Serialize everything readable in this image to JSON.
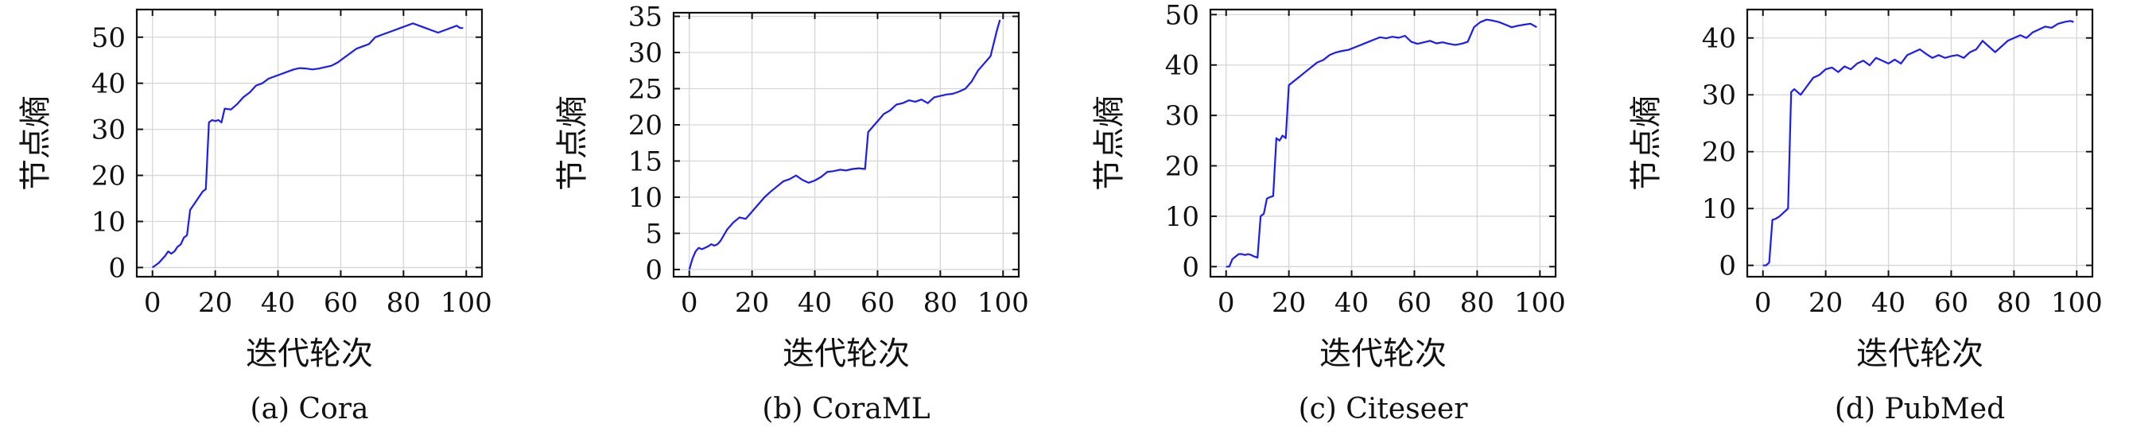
{
  "chart_data": [
    {
      "type": "line",
      "caption": "(a) Cora",
      "xlabel": "迭代轮次",
      "ylabel": "节点熵",
      "xlim": [
        -5,
        105
      ],
      "ylim": [
        -2,
        56
      ],
      "xticks": [
        0,
        20,
        40,
        60,
        80,
        100
      ],
      "yticks": [
        0,
        10,
        20,
        30,
        40,
        50
      ],
      "grid": true,
      "series": [
        {
          "color": "#1a1aff",
          "x": [
            0,
            2,
            4,
            5,
            6,
            7,
            8,
            9,
            10,
            11,
            12,
            13,
            14,
            15,
            16,
            17,
            18,
            19,
            20,
            21,
            22,
            23,
            25,
            27,
            29,
            31,
            33,
            35,
            37,
            39,
            41,
            43,
            45,
            47,
            49,
            51,
            53,
            55,
            57,
            59,
            61,
            63,
            65,
            67,
            69,
            71,
            73,
            75,
            77,
            79,
            81,
            83,
            85,
            87,
            89,
            91,
            93,
            95,
            97,
            98,
            99
          ],
          "y": [
            0,
            1,
            2.5,
            3.5,
            3,
            3.5,
            4.5,
            5,
            6.5,
            7,
            12.5,
            13.5,
            14.5,
            15.5,
            16.5,
            17,
            31.5,
            32,
            31.8,
            32,
            31.5,
            34.5,
            34.3,
            35.5,
            37,
            38,
            39.5,
            40,
            41,
            41.5,
            42,
            42.5,
            43,
            43.3,
            43.2,
            43,
            43.2,
            43.5,
            43.8,
            44.5,
            45.5,
            46.5,
            47.5,
            48,
            48.5,
            50,
            50.5,
            51,
            51.5,
            52,
            52.5,
            53,
            52.5,
            52,
            51.5,
            51,
            51.5,
            52,
            52.5,
            52,
            52
          ]
        }
      ]
    },
    {
      "type": "line",
      "caption": "(b) CoraML",
      "xlabel": "迭代轮次",
      "ylabel": "节点熵",
      "xlim": [
        -5,
        105
      ],
      "ylim": [
        -1,
        35.5
      ],
      "xticks": [
        0,
        20,
        40,
        60,
        80,
        100
      ],
      "yticks": [
        0,
        5,
        10,
        15,
        20,
        25,
        30,
        35
      ],
      "grid": true,
      "series": [
        {
          "color": "#1a1aff",
          "x": [
            0,
            1,
            2,
            3,
            4,
            5,
            6,
            7,
            8,
            9,
            10,
            12,
            14,
            16,
            18,
            20,
            22,
            24,
            26,
            28,
            30,
            32,
            34,
            36,
            38,
            40,
            42,
            44,
            46,
            48,
            50,
            52,
            54,
            56,
            57,
            58,
            60,
            62,
            64,
            66,
            68,
            70,
            72,
            74,
            76,
            78,
            80,
            82,
            84,
            86,
            88,
            90,
            92,
            94,
            96,
            98,
            99
          ],
          "y": [
            0,
            1.5,
            2.5,
            3,
            2.8,
            3,
            3.2,
            3.5,
            3.3,
            3.5,
            4,
            5.5,
            6.5,
            7.2,
            7,
            8,
            9,
            10,
            10.8,
            11.5,
            12.2,
            12.5,
            13,
            12.4,
            12,
            12.3,
            12.8,
            13.5,
            13.6,
            13.8,
            13.7,
            13.9,
            14,
            13.9,
            19,
            19.5,
            20.5,
            21.5,
            22,
            22.8,
            23,
            23.4,
            23.2,
            23.5,
            23,
            23.8,
            24,
            24.2,
            24.3,
            24.6,
            25,
            26,
            27.5,
            28.5,
            29.5,
            33,
            34.5
          ]
        }
      ]
    },
    {
      "type": "line",
      "caption": "(c) Citeseer",
      "xlabel": "迭代轮次",
      "ylabel": "节点熵",
      "xlim": [
        -5,
        105
      ],
      "ylim": [
        -2,
        51
      ],
      "xticks": [
        0,
        20,
        40,
        60,
        80,
        100
      ],
      "yticks": [
        0,
        10,
        20,
        30,
        40,
        50
      ],
      "grid": true,
      "series": [
        {
          "color": "#1a1aff",
          "x": [
            0,
            1,
            2,
            3,
            4,
            5,
            6,
            7,
            8,
            9,
            10,
            11,
            12,
            13,
            14,
            15,
            16,
            17,
            18,
            19,
            20,
            21,
            23,
            25,
            27,
            29,
            31,
            33,
            35,
            37,
            39,
            41,
            43,
            45,
            47,
            49,
            51,
            53,
            55,
            57,
            59,
            61,
            63,
            65,
            67,
            69,
            71,
            73,
            75,
            77,
            79,
            81,
            83,
            85,
            87,
            89,
            91,
            93,
            95,
            97,
            99
          ],
          "y": [
            0,
            0,
            1.5,
            2,
            2.5,
            2.5,
            2.3,
            2.5,
            2.3,
            2,
            1.8,
            10,
            10.5,
            13.5,
            13.8,
            14,
            25.5,
            25,
            26,
            25.5,
            36,
            36.5,
            37.5,
            38.5,
            39.5,
            40.5,
            41,
            42,
            42.5,
            42.8,
            43,
            43.5,
            44,
            44.5,
            45,
            45.5,
            45.3,
            45.6,
            45.4,
            45.8,
            44.6,
            44.2,
            44.5,
            44.8,
            44.3,
            44.5,
            44.2,
            44,
            44.2,
            44.6,
            47.5,
            48.5,
            49,
            48.8,
            48.5,
            48,
            47.5,
            47.8,
            48,
            48.2,
            47.5
          ]
        }
      ]
    },
    {
      "type": "line",
      "caption": "(d) PubMed",
      "xlabel": "迭代轮次",
      "ylabel": "节点熵",
      "xlim": [
        -5,
        105
      ],
      "ylim": [
        -2,
        45
      ],
      "xticks": [
        0,
        20,
        40,
        60,
        80,
        100
      ],
      "yticks": [
        0,
        10,
        20,
        30,
        40
      ],
      "grid": true,
      "series": [
        {
          "color": "#1a1aff",
          "x": [
            0,
            1,
            2,
            3,
            4,
            5,
            6,
            7,
            8,
            9,
            10,
            11,
            12,
            14,
            16,
            18,
            20,
            22,
            24,
            26,
            28,
            30,
            32,
            34,
            36,
            38,
            40,
            42,
            44,
            46,
            48,
            50,
            52,
            54,
            56,
            58,
            60,
            62,
            64,
            66,
            68,
            70,
            72,
            74,
            76,
            78,
            80,
            82,
            84,
            86,
            88,
            90,
            92,
            94,
            96,
            98,
            99
          ],
          "y": [
            0,
            0,
            0.5,
            8,
            8.2,
            8.5,
            9,
            9.5,
            10,
            30.5,
            31,
            30.5,
            30,
            31.5,
            33,
            33.5,
            34.5,
            34.8,
            34,
            35,
            34.5,
            35.5,
            36,
            35.2,
            36.5,
            36,
            35.5,
            36.2,
            35.5,
            37,
            37.5,
            38,
            37.2,
            36.5,
            37,
            36.5,
            36.8,
            37,
            36.5,
            37.5,
            38,
            39.5,
            38.5,
            37.5,
            38.5,
            39.5,
            40,
            40.5,
            40,
            41,
            41.5,
            42,
            41.8,
            42.5,
            42.8,
            43,
            42.8
          ]
        }
      ]
    }
  ]
}
